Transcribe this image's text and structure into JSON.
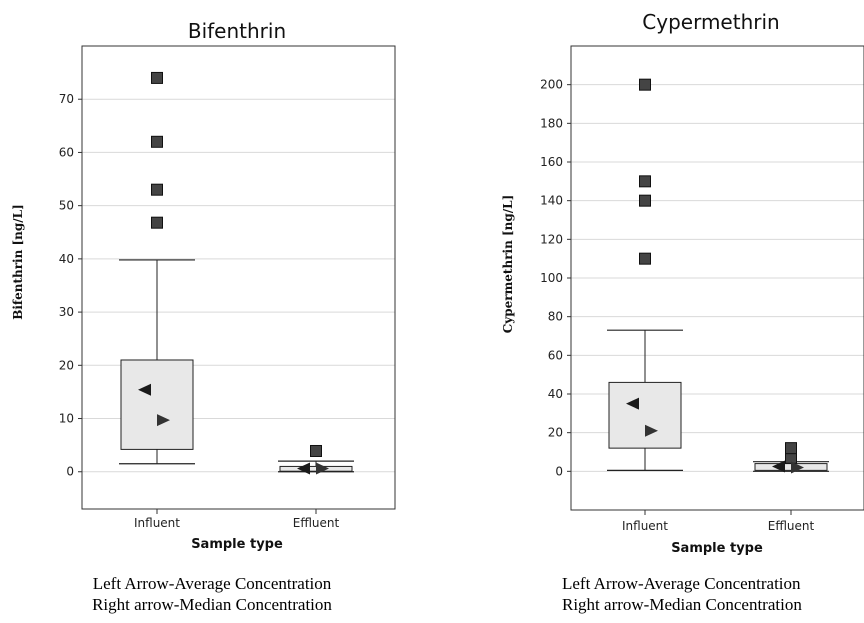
{
  "chart_data": [
    {
      "type": "box",
      "title": "Bifenthrin",
      "xlabel": "Sample type",
      "ylabel": "Bifenthrin [ng/L]",
      "ylim": [
        -7,
        80
      ],
      "yticks": [
        0,
        10,
        20,
        30,
        40,
        50,
        60,
        70
      ],
      "grid": true,
      "categories": [
        "Influent",
        "Effluent"
      ],
      "boxes": [
        {
          "category": "Influent",
          "whisker_low": 1.5,
          "q1": 4.2,
          "median": 9.7,
          "q3": 21.0,
          "whisker_high": 39.8,
          "mean": 15.4,
          "outliers": [
            46.8,
            53.0,
            62.0,
            74.0
          ]
        },
        {
          "category": "Effluent",
          "whisker_low": 0.0,
          "q1": 0.1,
          "median": 0.6,
          "q3": 1.0,
          "whisker_high": 2.0,
          "mean": 0.6,
          "outliers": [
            3.9
          ]
        }
      ]
    },
    {
      "type": "box",
      "title": "Cypermethrin",
      "xlabel": "Sample type",
      "ylabel": "Cypermethrin [ng/L]",
      "ylim": [
        -20,
        220
      ],
      "yticks": [
        0,
        20,
        40,
        60,
        80,
        100,
        120,
        140,
        160,
        180,
        200
      ],
      "grid": true,
      "categories": [
        "Influent",
        "Effluent"
      ],
      "boxes": [
        {
          "category": "Influent",
          "whisker_low": 0.5,
          "q1": 12.0,
          "median": 21.0,
          "q3": 46.0,
          "whisker_high": 73.0,
          "mean": 35.0,
          "outliers": [
            110,
            140,
            150,
            200
          ]
        },
        {
          "category": "Effluent",
          "whisker_low": 0.0,
          "q1": 0.5,
          "median": 2.0,
          "q3": 4.0,
          "whisker_high": 5.0,
          "mean": 2.5,
          "outliers": [
            7,
            12
          ]
        }
      ]
    }
  ],
  "captions": [
    {
      "line1": "Left Arrow-Average Concentration",
      "line2": "Right arrow-Median Concentration"
    },
    {
      "line1": "Left Arrow-Average Concentration",
      "line2": "Right arrow-Median Concentration"
    }
  ],
  "colors": {
    "box_fill": "#e8e8e8",
    "marker": "#444444",
    "grid": "#d9d9d9",
    "frame": "#333333"
  }
}
